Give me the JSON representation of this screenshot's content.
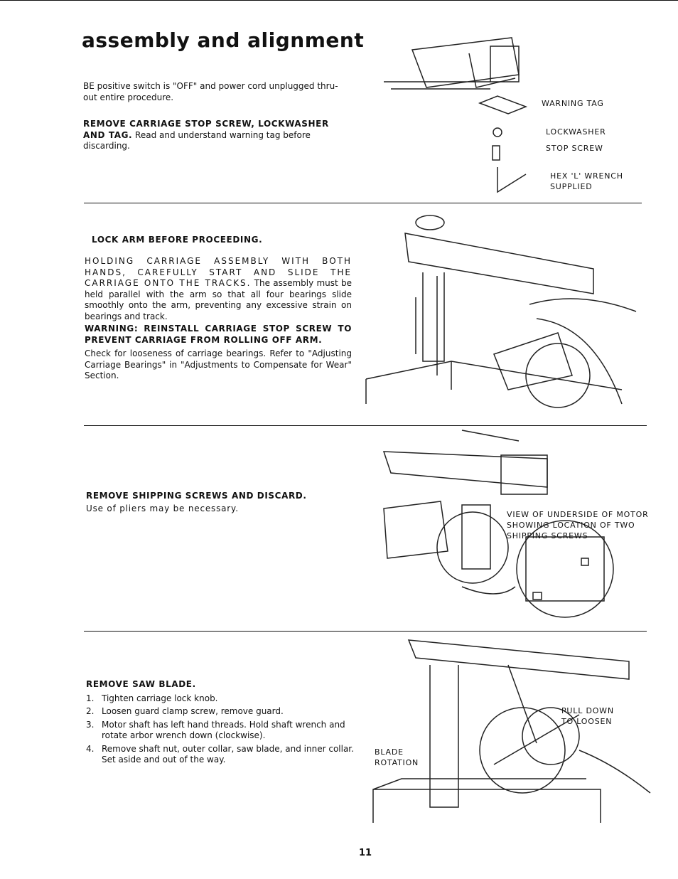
{
  "title": "assembly and alignment",
  "sections": [
    {
      "paragraphs": [
        {
          "text": "BE positive switch is \"OFF\" and power cord unplugged thru-out entire procedure."
        },
        {
          "bold": "REMOVE CARRIAGE STOP SCREW, LOCKWASHER AND TAG.",
          "text": "Read and understand warning tag before discarding."
        }
      ],
      "callouts": [
        "WARNING TAG",
        "LOCKWASHER",
        "STOP SCREW",
        "HEX 'L' WRENCH SUPPLIED"
      ]
    },
    {
      "heading": "LOCK ARM BEFORE PROCEEDING.",
      "paragraphs": [
        {
          "spaced": "HOLDING CARRIAGE ASSEMBLY WITH BOTH HANDS, CAREFULLY START AND SLIDE THE CARRIAGE ONTO THE TRACKS.",
          "text": "The assembly must be held parallel with the arm so that all four bearings slide smoothly onto the arm, preventing any excessive strain on bearings and track."
        },
        {
          "bold": "WARNING: REINSTALL CARRIAGE STOP SCREW TO PREVENT CARRIAGE FROM ROLLING OFF ARM."
        },
        {
          "text": "Check for looseness of carriage bearings. Refer to \"Adjusting Carriage Bearings\" in \"Adjustments to Compensate for Wear\" Section."
        }
      ]
    },
    {
      "heading": "REMOVE SHIPPING SCREWS AND DISCARD.",
      "paragraphs": [
        {
          "text": "Use of pliers may be necessary."
        }
      ],
      "callouts": [
        "VIEW OF UNDERSIDE OF MOTOR SHOWING LOCATION OF TWO SHIPPING SCREWS"
      ]
    },
    {
      "heading": "REMOVE SAW BLADE.",
      "steps": [
        {
          "number": "1.",
          "text": "Tighten carriage lock knob."
        },
        {
          "number": "2.",
          "text": "Loosen guard clamp screw, remove guard."
        },
        {
          "number": "3.",
          "text": "Motor shaft has left hand threads. Hold shaft wrench and rotate arbor wrench down (clockwise)."
        },
        {
          "number": "4.",
          "text": "Remove shaft nut, outer collar, saw blade, and inner collar. Set aside and out of the way."
        }
      ],
      "callouts": [
        "PULL DOWN TO LOOSEN",
        "BLADE ROTATION"
      ]
    }
  ],
  "page_number": "11"
}
